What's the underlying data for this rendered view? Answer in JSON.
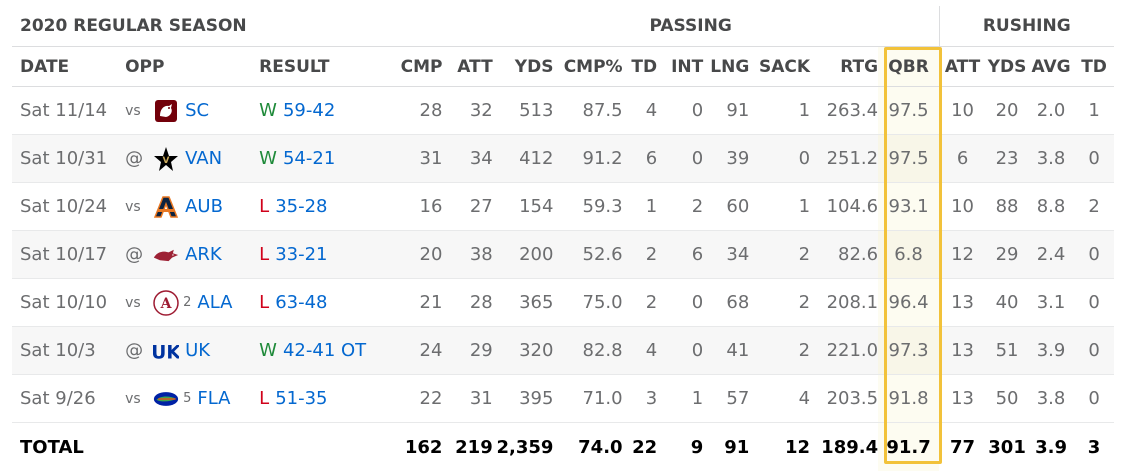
{
  "header": {
    "season_title": "2020 REGULAR SEASON",
    "passing_label": "PASSING",
    "rushing_label": "RUSHING"
  },
  "columns": {
    "date": "DATE",
    "opp": "OPP",
    "result": "RESULT",
    "cmp": "CMP",
    "att": "ATT",
    "yds": "YDS",
    "cmp_pct": "CMP%",
    "td": "TD",
    "int": "INT",
    "lng": "LNG",
    "sack": "SACK",
    "rtg": "RTG",
    "qbr": "QBR",
    "r_att": "ATT",
    "r_yds": "YDS",
    "r_avg": "AVG",
    "r_td": "TD"
  },
  "colors": {
    "win": "#1f8a3a",
    "loss": "#d0021b",
    "link": "#0468d0",
    "highlight": "#f2c23a"
  },
  "games": [
    {
      "date": "Sat 11/14",
      "loc": "vs",
      "logo": "gamecock-logo",
      "rank": "",
      "team": "SC",
      "wl": "W",
      "score": "59-42",
      "cmp": "28",
      "att": "32",
      "yds": "513",
      "pct": "87.5",
      "td": "4",
      "int": "0",
      "lng": "91",
      "sack": "1",
      "rtg": "263.4",
      "qbr": "97.5",
      "r_att": "10",
      "r_yds": "20",
      "r_avg": "2.0",
      "r_td": "1"
    },
    {
      "date": "Sat 10/31",
      "loc": "@",
      "logo": "vanderbilt-star-logo",
      "rank": "",
      "team": "VAN",
      "wl": "W",
      "score": "54-21",
      "cmp": "31",
      "att": "34",
      "yds": "412",
      "pct": "91.2",
      "td": "6",
      "int": "0",
      "lng": "39",
      "sack": "0",
      "rtg": "251.2",
      "qbr": "97.5",
      "r_att": "6",
      "r_yds": "23",
      "r_avg": "3.8",
      "r_td": "0"
    },
    {
      "date": "Sat 10/24",
      "loc": "vs",
      "logo": "auburn-logo",
      "rank": "",
      "team": "AUB",
      "wl": "L",
      "score": "35-28",
      "cmp": "16",
      "att": "27",
      "yds": "154",
      "pct": "59.3",
      "td": "1",
      "int": "2",
      "lng": "60",
      "sack": "1",
      "rtg": "104.6",
      "qbr": "93.1",
      "r_att": "10",
      "r_yds": "88",
      "r_avg": "8.8",
      "r_td": "2"
    },
    {
      "date": "Sat 10/17",
      "loc": "@",
      "logo": "razorback-logo",
      "rank": "",
      "team": "ARK",
      "wl": "L",
      "score": "33-21",
      "cmp": "20",
      "att": "38",
      "yds": "200",
      "pct": "52.6",
      "td": "2",
      "int": "6",
      "lng": "34",
      "sack": "2",
      "rtg": "82.6",
      "qbr": "6.8",
      "r_att": "12",
      "r_yds": "29",
      "r_avg": "2.4",
      "r_td": "0"
    },
    {
      "date": "Sat 10/10",
      "loc": "vs",
      "logo": "alabama-logo",
      "rank": "2",
      "team": "ALA",
      "wl": "L",
      "score": "63-48",
      "cmp": "21",
      "att": "28",
      "yds": "365",
      "pct": "75.0",
      "td": "2",
      "int": "0",
      "lng": "68",
      "sack": "2",
      "rtg": "208.1",
      "qbr": "96.4",
      "r_att": "13",
      "r_yds": "40",
      "r_avg": "3.1",
      "r_td": "0"
    },
    {
      "date": "Sat 10/3",
      "loc": "@",
      "logo": "kentucky-logo",
      "rank": "",
      "team": "UK",
      "wl": "W",
      "score": "42-41 OT",
      "cmp": "24",
      "att": "29",
      "yds": "320",
      "pct": "82.8",
      "td": "4",
      "int": "0",
      "lng": "41",
      "sack": "2",
      "rtg": "221.0",
      "qbr": "97.3",
      "r_att": "13",
      "r_yds": "51",
      "r_avg": "3.9",
      "r_td": "0"
    },
    {
      "date": "Sat 9/26",
      "loc": "vs",
      "logo": "gator-logo",
      "rank": "5",
      "team": "FLA",
      "wl": "L",
      "score": "51-35",
      "cmp": "22",
      "att": "31",
      "yds": "395",
      "pct": "71.0",
      "td": "3",
      "int": "1",
      "lng": "57",
      "sack": "4",
      "rtg": "203.5",
      "qbr": "91.8",
      "r_att": "13",
      "r_yds": "50",
      "r_avg": "3.8",
      "r_td": "0"
    }
  ],
  "total": {
    "label": "TOTAL",
    "cmp": "162",
    "att": "219",
    "yds": "2,359",
    "pct": "74.0",
    "td": "22",
    "int": "9",
    "lng": "91",
    "sack": "12",
    "rtg": "189.4",
    "qbr": "91.7",
    "r_att": "77",
    "r_yds": "301",
    "r_avg": "3.9",
    "r_td": "3"
  }
}
